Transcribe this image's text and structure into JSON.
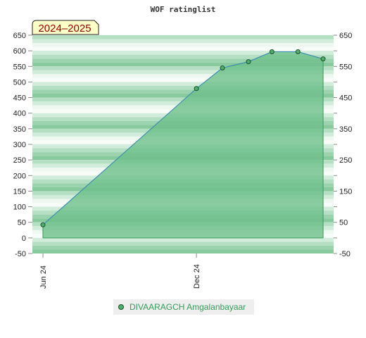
{
  "chart_data": {
    "type": "area",
    "title": "WOF ratinglist",
    "season_label": "2024–2025",
    "xlabel": "",
    "ylabel": "",
    "ylim": [
      -50,
      650
    ],
    "y_ticks": [
      -50,
      0,
      50,
      100,
      150,
      200,
      250,
      300,
      350,
      400,
      450,
      500,
      550,
      600,
      650
    ],
    "y_ticks_right": [
      -50,
      50,
      150,
      250,
      350,
      450,
      550,
      650
    ],
    "x_range": [
      "2024-06-01",
      "2025-06-01"
    ],
    "x_ticks": [
      {
        "date": "2024-06-01",
        "label": "Jun 24"
      },
      {
        "date": "2024-12-01",
        "label": "Dec 24"
      }
    ],
    "series": [
      {
        "name": "DIVAARAGCH Amgalanbayaar",
        "color": "#3c8dbc",
        "fill": "#6dbf8a",
        "points": [
          {
            "x": "2024-06-01",
            "y": 42
          },
          {
            "x": "2024-12-01",
            "y": 479
          },
          {
            "x": "2025-01-01",
            "y": 545
          },
          {
            "x": "2025-02-01",
            "y": 565
          },
          {
            "x": "2025-03-01",
            "y": 597
          },
          {
            "x": "2025-04-01",
            "y": 597
          },
          {
            "x": "2025-05-01",
            "y": 574
          }
        ]
      }
    ],
    "grid": true,
    "legend_position": "bottom"
  }
}
